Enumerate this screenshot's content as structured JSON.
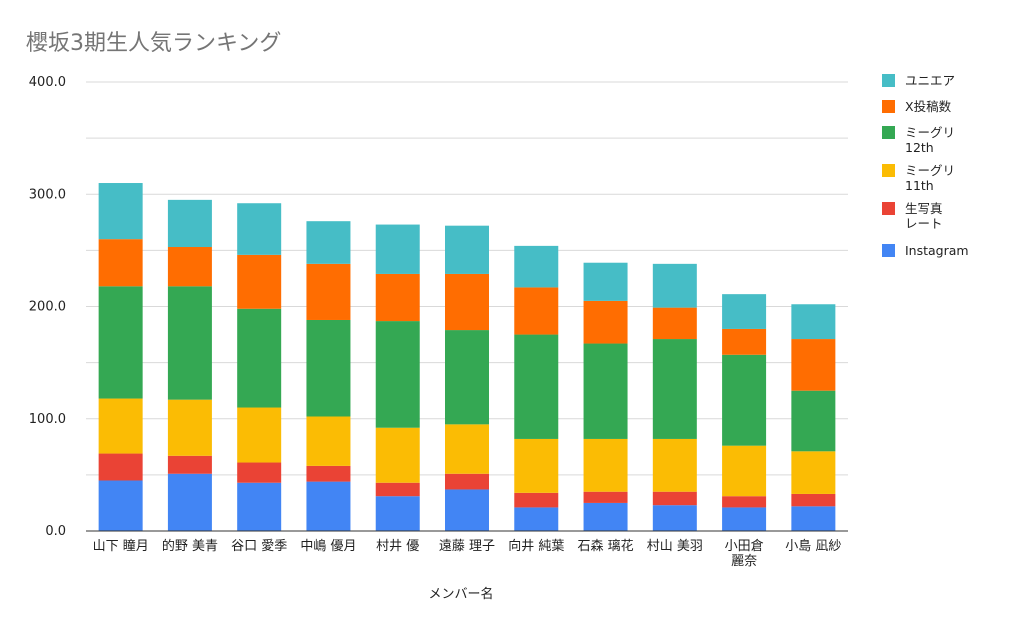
{
  "chart_data": {
    "type": "bar",
    "stacked": true,
    "title": "櫻坂3期生人気ランキング",
    "xlabel": "メンバー名",
    "ylabel": "",
    "ylim": [
      0,
      400
    ],
    "yticks": [
      "0.0",
      "100.0",
      "200.0",
      "300.0",
      "400.0"
    ],
    "grid": true,
    "legend_position": "right",
    "categories": [
      [
        "山下 瞳月"
      ],
      [
        "的野 美青"
      ],
      [
        "谷口 愛季"
      ],
      [
        "中嶋 優月"
      ],
      [
        "村井 優"
      ],
      [
        "遠藤 理子"
      ],
      [
        "向井 純葉"
      ],
      [
        "石森 璃花"
      ],
      [
        "村山 美羽"
      ],
      [
        "小田倉",
        "麗奈"
      ],
      [
        "小島 凪紗"
      ]
    ],
    "series": [
      {
        "name": "Instagram",
        "color": "#4285F4",
        "values": [
          45,
          51,
          43,
          44,
          31,
          37,
          21,
          25,
          23,
          21,
          22
        ]
      },
      {
        "name": "生写真 レート",
        "color": "#EA4335",
        "values": [
          24,
          16,
          18,
          14,
          12,
          14,
          13,
          10,
          12,
          10,
          11
        ]
      },
      {
        "name": "ミーグリ 11th",
        "color": "#FBBC04",
        "values": [
          49,
          50,
          49,
          44,
          49,
          44,
          48,
          47,
          47,
          45,
          38
        ]
      },
      {
        "name": "ミーグリ 12th",
        "color": "#34A853",
        "values": [
          100,
          101,
          88,
          86,
          95,
          84,
          93,
          85,
          89,
          81,
          54
        ]
      },
      {
        "name": "X投稿数",
        "color": "#FF6D01",
        "values": [
          42,
          35,
          48,
          50,
          42,
          50,
          42,
          38,
          28,
          23,
          46
        ]
      },
      {
        "name": "ユニエア",
        "color": "#46BDC6",
        "values": [
          50,
          42,
          46,
          38,
          44,
          43,
          37,
          34,
          39,
          31,
          31
        ]
      }
    ],
    "legend": [
      {
        "name": [
          "ユニエア"
        ],
        "color": "#46BDC6"
      },
      {
        "name": [
          "X投稿数"
        ],
        "color": "#FF6D01"
      },
      {
        "name": [
          "ミーグリ",
          "12th"
        ],
        "color": "#34A853"
      },
      {
        "name": [
          "ミーグリ",
          "11th"
        ],
        "color": "#FBBC04"
      },
      {
        "name": [
          "生写真",
          "レート"
        ],
        "color": "#EA4335"
      },
      {
        "name": [
          "Instagram"
        ],
        "color": "#4285F4"
      }
    ]
  }
}
